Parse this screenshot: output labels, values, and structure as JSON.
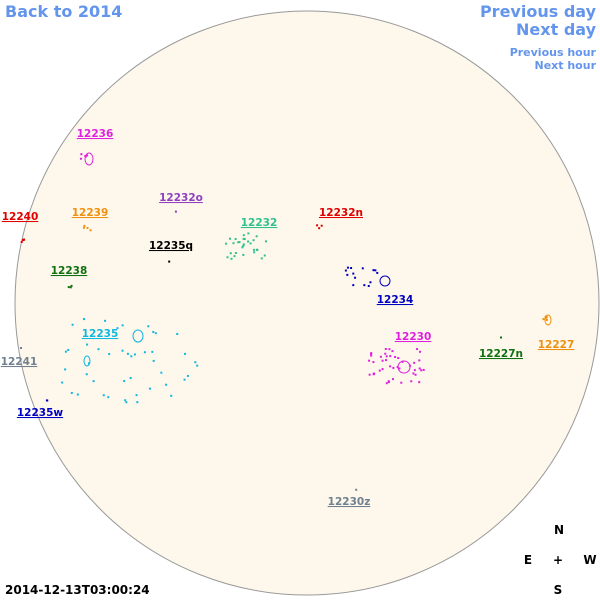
{
  "nav": {
    "back": "Back to 2014",
    "previous_day": "Previous day",
    "next_day": "Next day",
    "previous_hour": "Previous hour",
    "next_hour": "Next hour"
  },
  "regions": [
    {
      "label": "12236",
      "color": "#e020e0"
    },
    {
      "label": "12240",
      "color": "#e00000"
    },
    {
      "label": "12239",
      "color": "#f09010"
    },
    {
      "label": "12232o",
      "color": "#9040c0"
    },
    {
      "label": "12232",
      "color": "#30c090"
    },
    {
      "label": "12232n",
      "color": "#e00000"
    },
    {
      "label": "12235q",
      "color": "#000000"
    },
    {
      "label": "12238",
      "color": "#107010"
    },
    {
      "label": "12234",
      "color": "#0000c0"
    },
    {
      "label": "12235",
      "color": "#10b8e0"
    },
    {
      "label": "12230",
      "color": "#e020e0"
    },
    {
      "label": "12227",
      "color": "#f09010"
    },
    {
      "label": "12227n",
      "color": "#107010"
    },
    {
      "label": "12241",
      "color": "#708090"
    },
    {
      "label": "12235w",
      "color": "#0000c0"
    },
    {
      "label": "12230z",
      "color": "#708090"
    }
  ],
  "compass": {
    "north": "N",
    "east": "E",
    "center": "+",
    "west": "W",
    "south": "S"
  },
  "timestamp": "2014-12-13T03:00:24"
}
